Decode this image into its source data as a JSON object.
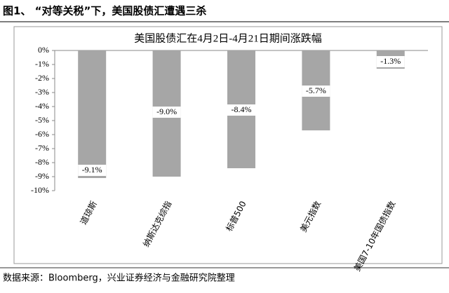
{
  "header": {
    "title": "图1、 “对等关税”下，美国股债汇遭遇三杀"
  },
  "chart_data": {
    "type": "bar",
    "title": "美国股债汇在4月2日-4月21日期间涨跌幅",
    "categories": [
      "道琼斯",
      "纳斯达克综指",
      "标普500",
      "美元指数",
      "美国7-10年国债指数"
    ],
    "values": [
      -9.1,
      -9.0,
      -8.4,
      -5.7,
      -1.3
    ],
    "value_labels": [
      "-9.1%",
      "-9.0%",
      "-8.4%",
      "-5.7%",
      "-1.3%"
    ],
    "color": "#a6a6a6",
    "ylim": [
      -10,
      0
    ],
    "yticks": [
      {
        "value": 0,
        "label": "0%"
      },
      {
        "value": -1,
        "label": "-1%"
      },
      {
        "value": -2,
        "label": "-2%"
      },
      {
        "value": -3,
        "label": "-3%"
      },
      {
        "value": -4,
        "label": "-4%"
      },
      {
        "value": -5,
        "label": "-5%"
      },
      {
        "value": -6,
        "label": "-6%"
      },
      {
        "value": -7,
        "label": "-7%"
      },
      {
        "value": -8,
        "label": "-8%"
      },
      {
        "value": -9,
        "label": "-9%"
      },
      {
        "value": -10,
        "label": "-10%"
      }
    ]
  },
  "source": "数据来源：Bloomberg，兴业证券经济与金融研究院整理"
}
